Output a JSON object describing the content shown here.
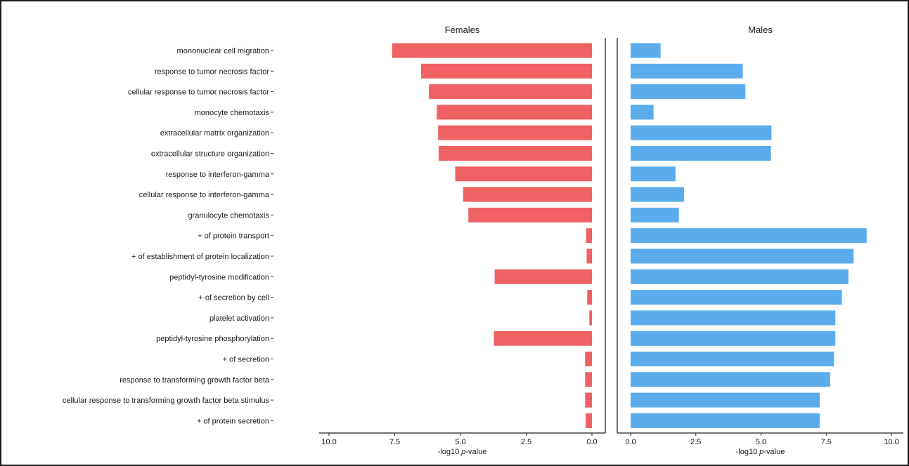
{
  "chart_data": {
    "type": "bar",
    "orientation": "horizontal",
    "categories": [
      "mononuclear cell migration",
      "response to tumor necrosis factor",
      "cellular response to tumor necrosis factor",
      "monocyte chemotaxis",
      "extracellular matrix organization",
      "extracellular structure organization",
      "response to interferon-gamma",
      "cellular response to interferon-gamma",
      "granulocyte chemotaxis",
      "+ of protein transport",
      "+ of establishment of protein localization",
      "peptidyl-tyrosine modification",
      "+ of secretion by cell",
      "platelet activation",
      "peptidyl-tyrosine phosphorylation",
      "+ of secretion",
      "response to transforming growth factor beta",
      "cellular response to transforming growth factor beta stimulus",
      "+ of protein secretion"
    ],
    "panels": [
      {
        "title": "Females",
        "direction": "reversed",
        "color": "#ef6163",
        "xlim": [
          0,
          10
        ],
        "ticks": [
          "10.0",
          "7.5",
          "5.0",
          "2.5",
          "0.0"
        ],
        "tick_values": [
          10,
          7.5,
          5,
          2.5,
          0
        ],
        "xlabel_prefix": "-log10 ",
        "xlabel_italic": "p",
        "xlabel_suffix": "-value",
        "values": [
          7.6,
          6.5,
          6.2,
          5.9,
          5.85,
          5.83,
          5.2,
          4.9,
          4.7,
          0.22,
          0.2,
          3.7,
          0.18,
          0.1,
          3.73,
          0.26,
          0.26,
          0.26,
          0.24
        ]
      },
      {
        "title": "Males",
        "direction": "normal",
        "color": "#5aacec",
        "xlim": [
          0,
          10
        ],
        "ticks": [
          "0.0",
          "2.5",
          "5.0",
          "7.5",
          "10.0"
        ],
        "tick_values": [
          0,
          2.5,
          5,
          7.5,
          10
        ],
        "xlabel_prefix": "-log10 ",
        "xlabel_italic": "p",
        "xlabel_suffix": "-value",
        "values": [
          1.15,
          4.3,
          4.4,
          0.88,
          5.4,
          5.38,
          1.72,
          2.05,
          1.85,
          9.05,
          8.55,
          8.35,
          8.1,
          7.85,
          7.85,
          7.8,
          7.65,
          7.25,
          7.25
        ]
      }
    ],
    "grid": false,
    "legend": "none"
  }
}
